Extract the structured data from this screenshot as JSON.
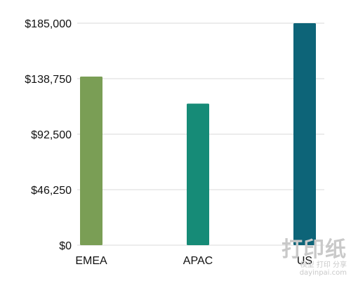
{
  "chart_data": {
    "type": "bar",
    "categories": [
      "EMEA",
      "APAC",
      "US"
    ],
    "values": [
      140500,
      118000,
      185000
    ],
    "ylim": [
      0,
      185000
    ],
    "yticks": [
      0,
      46250,
      92500,
      138750,
      185000
    ],
    "ytick_labels": [
      "$0",
      "$46,250",
      "$92,500",
      "$138,750",
      "$185,000"
    ],
    "grid": true,
    "legend": "none",
    "colors": [
      "#7a9e55",
      "#168b77",
      "#0d6478"
    ],
    "gridColor": "#d9d9d9"
  },
  "watermark": {
    "line1": "打印纸",
    "line2": "模型 打印 分享",
    "line3": "dayinpai.com"
  }
}
